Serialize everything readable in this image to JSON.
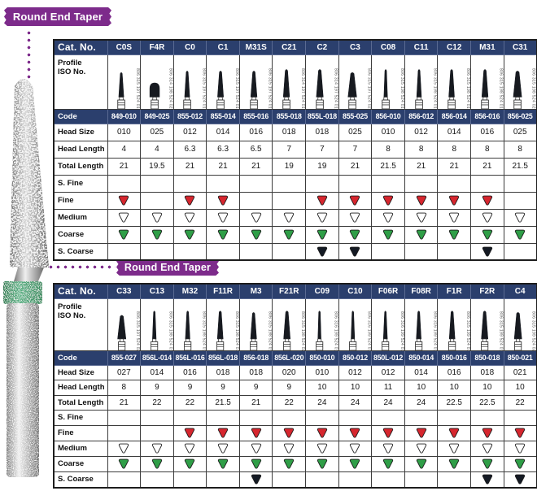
{
  "ribbons": [
    {
      "label": "Round End Taper"
    },
    {
      "label": "Round End Taper"
    }
  ],
  "accent_colors": {
    "ribbon_purple": "#7d2b8b",
    "header_navy": "#2b3f6d"
  },
  "diamond_colors": {
    "red": {
      "fill": "#d6262e",
      "stroke": "#1a1a1a"
    },
    "white": {
      "fill": "#ffffff",
      "stroke": "#1a1a1a"
    },
    "green": {
      "fill": "#2f9e47",
      "stroke": "#1a1a1a"
    },
    "black": {
      "fill": "#141a24",
      "stroke": "#1a1a1a"
    }
  },
  "row_labels": {
    "cat_no": "Cat. No.",
    "profile_line1": "Profile",
    "profile_line2": "ISO No.",
    "code": "Code",
    "head_size": "Head Size",
    "head_length": "Head Length",
    "total_length": "Total Length",
    "s_fine": "S. Fine",
    "fine": "Fine",
    "medium": "Medium",
    "coarse": "Coarse",
    "s_coarse": "S. Coarse"
  },
  "tables": [
    {
      "columns": [
        {
          "cat": "C0S",
          "iso": "806 315 197 524 010",
          "code": "849-010",
          "head_size": "010",
          "head_length": "4",
          "total_length": "21",
          "grits": [
            null,
            "red",
            "white",
            "green",
            null
          ],
          "bur": {
            "shape": "taper",
            "hw": 3.4,
            "hh": 34
          }
        },
        {
          "cat": "F4R",
          "iso": "806 314 198 524 025",
          "code": "849-025",
          "head_size": "025",
          "head_length": "4",
          "total_length": "19.5",
          "grits": [
            null,
            null,
            "white",
            "green",
            null
          ],
          "bur": {
            "shape": "dome",
            "hw": 6.5,
            "hh": 19
          }
        },
        {
          "cat": "C0",
          "iso": "806 315 197 524 012",
          "code": "855-012",
          "head_size": "012",
          "head_length": "6.3",
          "total_length": "21",
          "grits": [
            null,
            "red",
            "white",
            "green",
            null
          ],
          "bur": {
            "shape": "taper",
            "hw": 3.4,
            "hh": 36
          }
        },
        {
          "cat": "C1",
          "iso": "806 315 197 524 014",
          "code": "855-014",
          "head_size": "014",
          "head_length": "6.3",
          "total_length": "21",
          "grits": [
            null,
            "red",
            "white",
            "green",
            null
          ],
          "bur": {
            "shape": "taper",
            "hw": 4.0,
            "hh": 36
          }
        },
        {
          "cat": "M31S",
          "iso": "806 315 197 524 016",
          "code": "855-016",
          "head_size": "016",
          "head_length": "6.5",
          "total_length": "21",
          "grits": [
            null,
            null,
            "white",
            "green",
            null
          ],
          "bur": {
            "shape": "taper",
            "hw": 4.2,
            "hh": 36
          }
        },
        {
          "cat": "C21",
          "iso": "806 314 197 524 018",
          "code": "855-018",
          "head_size": "018",
          "head_length": "7",
          "total_length": "19",
          "grits": [
            null,
            null,
            "white",
            "green",
            null
          ],
          "bur": {
            "shape": "taper",
            "hw": 4.2,
            "hh": 38
          }
        },
        {
          "cat": "C2",
          "iso": "806 314 197 524 018",
          "code": "855L-018",
          "head_size": "018",
          "head_length": "7",
          "total_length": "19",
          "grits": [
            null,
            "red",
            "white",
            "green",
            "black"
          ],
          "bur": {
            "shape": "taper",
            "hw": 4.6,
            "hh": 38
          }
        },
        {
          "cat": "C3",
          "iso": "806 315 197 524 025",
          "code": "855-025",
          "head_size": "025",
          "head_length": "7",
          "total_length": "21",
          "grits": [
            null,
            "red",
            "white",
            "green",
            "black"
          ],
          "bur": {
            "shape": "taper",
            "hw": 5.8,
            "hh": 34
          }
        },
        {
          "cat": "C08",
          "iso": "806 315 198 524 010",
          "code": "856-010",
          "head_size": "010",
          "head_length": "8",
          "total_length": "21.5",
          "grits": [
            null,
            "red",
            "white",
            "green",
            null
          ],
          "bur": {
            "shape": "taper",
            "hw": 2.4,
            "hh": 38
          }
        },
        {
          "cat": "C11",
          "iso": "806 315 198 524 012",
          "code": "856-012",
          "head_size": "012",
          "head_length": "8",
          "total_length": "21",
          "grits": [
            null,
            "red",
            "white",
            "green",
            null
          ],
          "bur": {
            "shape": "taper",
            "hw": 3.2,
            "hh": 38
          }
        },
        {
          "cat": "C12",
          "iso": "806 315 198 524 014",
          "code": "856-014",
          "head_size": "014",
          "head_length": "8",
          "total_length": "21",
          "grits": [
            null,
            "red",
            "white",
            "green",
            null
          ],
          "bur": {
            "shape": "taper",
            "hw": 3.8,
            "hh": 38
          }
        },
        {
          "cat": "M31",
          "iso": "806 315 198 524 016",
          "code": "856-016",
          "head_size": "016",
          "head_length": "8",
          "total_length": "21",
          "grits": [
            null,
            "red",
            "white",
            "green",
            "black"
          ],
          "bur": {
            "shape": "taper",
            "hw": 4.2,
            "hh": 38
          }
        },
        {
          "cat": "C31",
          "iso": "806 315 198 524 025",
          "code": "856-025",
          "head_size": "025",
          "head_length": "8",
          "total_length": "21.5",
          "grits": [
            null,
            null,
            "white",
            "green",
            null
          ],
          "bur": {
            "shape": "taper",
            "hw": 5.6,
            "hh": 36
          }
        }
      ]
    },
    {
      "columns": [
        {
          "cat": "C33",
          "iso": "806 315 197 524 027",
          "code": "855-027",
          "head_size": "027",
          "head_length": "8",
          "total_length": "21",
          "grits": [
            null,
            null,
            "white",
            "green",
            null
          ],
          "bur": {
            "shape": "taper",
            "hw": 5.8,
            "hh": 34
          }
        },
        {
          "cat": "C13",
          "iso": "806 315 198 524 014",
          "code": "856L-014",
          "head_size": "014",
          "head_length": "9",
          "total_length": "22",
          "grits": [
            null,
            null,
            "white",
            "green",
            null
          ],
          "bur": {
            "shape": "taper",
            "hw": 2.6,
            "hh": 40
          }
        },
        {
          "cat": "M32",
          "iso": "806 315 198 524 016",
          "code": "856L-016",
          "head_size": "016",
          "head_length": "9",
          "total_length": "22",
          "grits": [
            null,
            "red",
            "white",
            "green",
            null
          ],
          "bur": {
            "shape": "taper",
            "hw": 3.2,
            "hh": 40
          }
        },
        {
          "cat": "F11R",
          "iso": "806 315 198 524 018",
          "code": "856L-018",
          "head_size": "018",
          "head_length": "9",
          "total_length": "21.5",
          "grits": [
            null,
            "red",
            "white",
            "green",
            null
          ],
          "bur": {
            "shape": "taper",
            "hw": 4.0,
            "hh": 40
          }
        },
        {
          "cat": "M3",
          "iso": "806 315 198 524 018",
          "code": "856-018",
          "head_size": "018",
          "head_length": "9",
          "total_length": "21",
          "grits": [
            null,
            "red",
            "white",
            "green",
            "black"
          ],
          "bur": {
            "shape": "taper",
            "hw": 4.2,
            "hh": 38
          }
        },
        {
          "cat": "F21R",
          "iso": "806 315 198 524 020",
          "code": "856L-020",
          "head_size": "020",
          "head_length": "9",
          "total_length": "22",
          "grits": [
            null,
            "red",
            "white",
            "green",
            null
          ],
          "bur": {
            "shape": "taper",
            "hw": 4.6,
            "hh": 40
          }
        },
        {
          "cat": "C09",
          "iso": "806 316 199 524 010",
          "code": "850-010",
          "head_size": "010",
          "head_length": "10",
          "total_length": "24",
          "grits": [
            null,
            "red",
            "white",
            "green",
            null
          ],
          "bur": {
            "shape": "taper",
            "hw": 2.2,
            "hh": 40
          }
        },
        {
          "cat": "C10",
          "iso": "806 316 199 524 012",
          "code": "850-012",
          "head_size": "012",
          "head_length": "10",
          "total_length": "24",
          "grits": [
            null,
            "red",
            "white",
            "green",
            null
          ],
          "bur": {
            "shape": "taper",
            "hw": 2.5,
            "hh": 40
          }
        },
        {
          "cat": "F06R",
          "iso": "806 316 199 524 012",
          "code": "850L-012",
          "head_size": "012",
          "head_length": "11",
          "total_length": "24",
          "grits": [
            null,
            "red",
            "white",
            "green",
            null
          ],
          "bur": {
            "shape": "taper",
            "hw": 2.8,
            "hh": 40
          }
        },
        {
          "cat": "F08R",
          "iso": "806 316 199 524 014",
          "code": "850-014",
          "head_size": "014",
          "head_length": "10",
          "total_length": "24",
          "grits": [
            null,
            "red",
            "white",
            "green",
            null
          ],
          "bur": {
            "shape": "taper",
            "hw": 3.4,
            "hh": 40
          }
        },
        {
          "cat": "F1R",
          "iso": "806 315 199 524 016",
          "code": "850-016",
          "head_size": "016",
          "head_length": "10",
          "total_length": "22.5",
          "grits": [
            null,
            "red",
            "white",
            "green",
            null
          ],
          "bur": {
            "shape": "taper",
            "hw": 4.0,
            "hh": 40
          }
        },
        {
          "cat": "F2R",
          "iso": "806 315 199 524 018",
          "code": "850-018",
          "head_size": "018",
          "head_length": "10",
          "total_length": "22.5",
          "grits": [
            null,
            "red",
            "white",
            "green",
            "black"
          ],
          "bur": {
            "shape": "taper",
            "hw": 4.6,
            "hh": 40
          }
        },
        {
          "cat": "C4",
          "iso": "806 315 199 524 021",
          "code": "850-021",
          "head_size": "021",
          "head_length": "10",
          "total_length": "22",
          "grits": [
            null,
            "red",
            "white",
            "green",
            "black"
          ],
          "bur": {
            "shape": "taper",
            "hw": 5.2,
            "hh": 38
          }
        }
      ]
    }
  ]
}
